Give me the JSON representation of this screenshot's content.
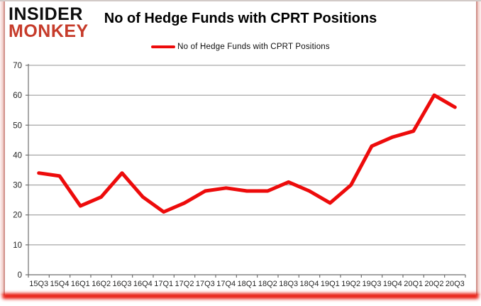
{
  "header": {
    "logo_line1": "INSIDER",
    "logo_line2": "MONKEY",
    "title": "No of Hedge Funds with CPRT Positions"
  },
  "legend": {
    "label": "No of Hedge Funds with CPRT Positions"
  },
  "colors": {
    "line": "#ed0b0b",
    "logo_red": "#c63b2a",
    "grid": "#909090",
    "axis": "#6e6e6e",
    "tick_text": "#262626",
    "border_pink": "#d2938c",
    "bottom_glow": "#e8170c"
  },
  "chart_data": {
    "type": "line",
    "title": "No of Hedge Funds with CPRT Positions",
    "categories": [
      "15Q3",
      "15Q4",
      "16Q1",
      "16Q2",
      "16Q3",
      "16Q4",
      "17Q1",
      "17Q2",
      "17Q3",
      "17Q4",
      "18Q1",
      "18Q2",
      "18Q3",
      "18Q4",
      "19Q1",
      "19Q2",
      "19Q3",
      "19Q4",
      "20Q1",
      "20Q2",
      "20Q3"
    ],
    "series": [
      {
        "name": "No of Hedge Funds with CPRT Positions",
        "values": [
          34,
          33,
          23,
          26,
          34,
          26,
          21,
          24,
          28,
          29,
          28,
          28,
          31,
          28,
          24,
          30,
          43,
          46,
          48,
          60,
          56
        ]
      }
    ],
    "xlabel": "",
    "ylabel": "",
    "ylim": [
      0,
      70
    ],
    "ytick_step": 10,
    "grid": true,
    "legend_position": "top-center"
  }
}
